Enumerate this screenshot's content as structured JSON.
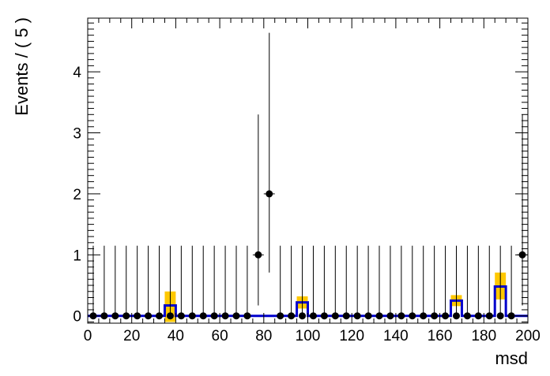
{
  "chart_data": {
    "type": "scatter",
    "xlabel": "msd",
    "ylabel": "Events / ( 5 )",
    "xlim": [
      0,
      200
    ],
    "ylim": [
      -0.12,
      4.88
    ],
    "xticks": [
      0,
      20,
      40,
      60,
      80,
      100,
      120,
      140,
      160,
      180,
      200
    ],
    "yticks": [
      0,
      1,
      2,
      3,
      4
    ],
    "bin_width": 5,
    "colors": {
      "band": "#ffc800",
      "model": "#0000cc",
      "data": "#000000"
    },
    "data_points": {
      "x": [
        2.5,
        7.5,
        12.5,
        17.5,
        22.5,
        27.5,
        32.5,
        37.5,
        42.5,
        47.5,
        52.5,
        57.5,
        62.5,
        67.5,
        72.5,
        77.5,
        82.5,
        87.5,
        92.5,
        97.5,
        102.5,
        107.5,
        112.5,
        117.5,
        122.5,
        127.5,
        132.5,
        137.5,
        142.5,
        147.5,
        152.5,
        157.5,
        162.5,
        167.5,
        172.5,
        177.5,
        182.5,
        187.5,
        192.5,
        197.5
      ],
      "y": [
        0,
        0,
        0,
        0,
        0,
        0,
        0,
        0,
        0,
        0,
        0,
        0,
        0,
        0,
        0,
        1,
        2,
        0,
        0,
        0,
        0,
        0,
        0,
        0,
        0,
        0,
        0,
        0,
        0,
        0,
        0,
        0,
        0,
        0,
        0,
        0,
        0,
        0,
        0,
        1
      ],
      "err_up": [
        1.15,
        1.15,
        1.15,
        1.15,
        1.15,
        1.15,
        1.15,
        1.15,
        1.15,
        1.15,
        1.15,
        1.15,
        1.15,
        1.15,
        1.15,
        2.3,
        2.64,
        1.15,
        1.15,
        1.15,
        1.15,
        1.15,
        1.15,
        1.15,
        1.15,
        1.15,
        1.15,
        1.15,
        1.15,
        1.15,
        1.15,
        1.15,
        1.15,
        1.15,
        1.15,
        1.15,
        1.15,
        1.15,
        1.15,
        2.3
      ],
      "err_down": [
        0,
        0,
        0,
        0,
        0,
        0,
        0,
        0,
        0,
        0,
        0,
        0,
        0,
        0,
        0,
        0.83,
        1.29,
        0,
        0,
        0,
        0,
        0,
        0,
        0,
        0,
        0,
        0,
        0,
        0,
        0,
        0,
        0,
        0,
        0,
        0,
        0,
        0,
        0,
        0,
        0.83
      ]
    },
    "model": [
      {
        "x_low": 35,
        "x_high": 40,
        "value": 0.17
      },
      {
        "x_low": 95,
        "x_high": 100,
        "value": 0.22
      },
      {
        "x_low": 165,
        "x_high": 170,
        "value": 0.25
      },
      {
        "x_low": 185,
        "x_high": 190,
        "value": 0.48
      }
    ],
    "band": [
      {
        "x_low": 35,
        "x_high": 40,
        "low": -0.1,
        "high": 0.4
      },
      {
        "x_low": 95,
        "x_high": 100,
        "low": 0.12,
        "high": 0.32
      },
      {
        "x_low": 165,
        "x_high": 170,
        "low": 0.16,
        "high": 0.34
      },
      {
        "x_low": 185,
        "x_high": 190,
        "low": 0.27,
        "high": 0.71
      }
    ]
  }
}
